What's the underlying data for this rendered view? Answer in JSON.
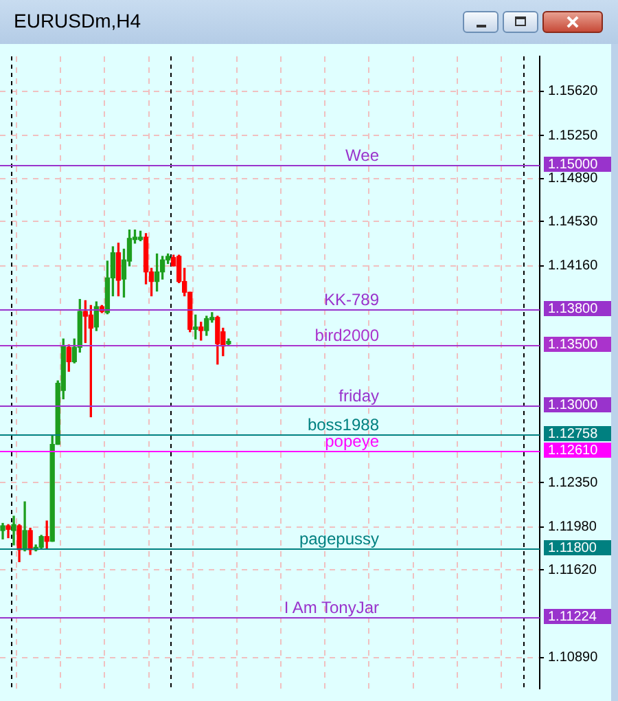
{
  "chart_data": {
    "type": "candlestick",
    "title": "EURUSDm,H4",
    "categories": [
      null,
      null,
      null,
      null,
      null,
      null,
      null,
      null,
      null,
      null,
      null,
      null,
      null,
      null,
      null,
      null,
      null,
      null,
      null,
      null,
      null,
      null,
      null,
      null,
      null,
      null,
      null,
      null,
      null,
      null,
      null,
      null,
      null,
      null,
      null,
      null,
      null,
      null,
      null,
      null,
      null,
      null,
      null,
      null,
      null,
      null,
      null,
      null,
      null,
      null,
      null,
      null,
      null,
      null,
      null,
      null,
      null,
      null,
      null,
      null,
      null,
      null,
      null,
      null,
      null,
      null,
      null,
      null,
      null,
      null,
      null,
      null,
      null,
      null,
      null,
      null,
      null,
      null,
      null,
      null,
      null,
      null,
      null,
      null,
      null,
      null,
      null,
      null,
      null,
      null,
      null,
      null,
      null,
      null,
      null,
      null,
      null,
      null
    ],
    "ohlc": [
      [
        1.1195,
        1.1201,
        1.1188,
        1.1199
      ],
      [
        1.1199,
        1.12,
        1.1189,
        1.1196
      ],
      [
        1.1195,
        1.1207,
        1.1183,
        1.12
      ],
      [
        1.1199,
        1.12,
        1.1169,
        1.1179
      ],
      [
        1.1179,
        1.1219,
        1.1178,
        1.1195
      ],
      [
        1.1195,
        1.1197,
        1.1175,
        1.1179
      ],
      [
        1.1179,
        1.1183,
        1.1178,
        1.1181
      ],
      [
        1.1181,
        1.1191,
        1.118,
        1.119
      ],
      [
        1.119,
        1.1203,
        1.118,
        1.1186
      ],
      [
        1.1186,
        1.1274,
        1.1186,
        1.1267
      ],
      [
        1.1267,
        1.132,
        1.1267,
        1.1318
      ],
      [
        1.1312,
        1.1355,
        1.1305,
        1.1349
      ],
      [
        1.1348,
        1.135,
        1.1328,
        1.1336
      ],
      [
        1.1336,
        1.1355,
        1.1335,
        1.1348
      ],
      [
        1.1348,
        1.1388,
        1.1344,
        1.1378
      ],
      [
        1.1378,
        1.1387,
        1.1352,
        1.1374
      ],
      [
        1.1375,
        1.1383,
        1.129,
        1.1364
      ],
      [
        1.1365,
        1.1386,
        1.1362,
        1.1382
      ],
      [
        1.1382,
        1.1383,
        1.1377,
        1.1378
      ],
      [
        1.1377,
        1.142,
        1.1376,
        1.1406
      ],
      [
        1.1406,
        1.1432,
        1.1391,
        1.1427
      ],
      [
        1.1427,
        1.1435,
        1.1391,
        1.1404
      ],
      [
        1.1405,
        1.143,
        1.139,
        1.1421
      ],
      [
        1.142,
        1.1446,
        1.1416,
        1.1439
      ],
      [
        1.1438,
        1.1446,
        1.1435,
        1.144
      ],
      [
        1.1438,
        1.1445,
        1.1437,
        1.144
      ],
      [
        1.144,
        1.1443,
        1.1401,
        1.1411
      ],
      [
        1.1411,
        1.1414,
        1.1391,
        1.1403
      ],
      [
        1.1403,
        1.1426,
        1.1395,
        1.1411
      ],
      [
        1.1411,
        1.1424,
        1.1405,
        1.1421
      ],
      [
        1.1421,
        1.1426,
        1.1418,
        1.1424
      ],
      [
        1.1423,
        1.1425,
        1.1416,
        1.1416
      ],
      [
        1.1424,
        1.1425,
        1.1402,
        1.1403
      ],
      [
        1.1403,
        1.1414,
        1.1391,
        1.1394
      ],
      [
        1.1394,
        1.1394,
        1.1361,
        1.1363
      ],
      [
        1.1363,
        1.1375,
        1.1355,
        1.1365
      ],
      [
        1.1365,
        1.1369,
        1.1354,
        1.1362
      ],
      [
        1.1362,
        1.1374,
        1.1358,
        1.1372
      ],
      [
        1.1371,
        1.1377,
        1.1369,
        1.1373
      ],
      [
        1.1373,
        1.1374,
        1.1334,
        1.1351
      ],
      [
        1.1361,
        1.1364,
        1.1341,
        1.1349
      ],
      [
        1.1351,
        1.1355,
        1.135,
        1.1353
      ],
      null,
      null,
      null,
      null,
      null,
      null,
      null,
      null,
      null,
      null,
      null,
      null,
      null,
      null,
      null,
      null,
      null,
      null,
      null,
      null,
      null,
      null,
      null,
      null,
      null,
      null,
      null,
      null,
      null,
      null,
      null,
      null,
      null,
      null,
      null,
      null,
      null,
      null,
      null,
      null,
      null,
      null,
      null,
      null,
      null,
      null,
      null,
      null,
      null,
      null,
      null,
      null,
      null,
      null,
      null,
      null
    ],
    "colors": [
      "#1e9e1e",
      "#ff0000",
      "#1e9e1e",
      "#ff0000",
      "#1e9e1e",
      "#ff0000",
      "#1e9e1e",
      "#1e9e1e",
      "#ff0000",
      "#1e9e1e",
      "#1e9e1e",
      "#1e9e1e",
      "#ff0000",
      "#1e9e1e",
      "#1e9e1e",
      "#ff0000",
      "#ff0000",
      "#1e9e1e",
      "#ff0000",
      "#1e9e1e",
      "#1e9e1e",
      "#ff0000",
      "#1e9e1e",
      "#1e9e1e",
      "#1e9e1e",
      "#1e9e1e",
      "#ff0000",
      "#ff0000",
      "#1e9e1e",
      "#1e9e1e",
      "#1e9e1e",
      "#ff0000",
      "#ff0000",
      "#ff0000",
      "#ff0000",
      "#1e9e1e",
      "#ff0000",
      "#1e9e1e",
      "#1e9e1e",
      "#ff0000",
      "#ff0000",
      "#1e9e1e",
      null,
      null,
      null,
      null,
      null,
      null,
      null,
      null,
      null,
      null,
      null,
      null,
      null,
      null,
      null,
      null,
      null,
      null,
      null,
      null,
      null,
      null,
      null,
      null,
      null,
      null,
      null,
      null,
      null,
      null,
      null,
      null,
      null,
      null,
      null,
      null,
      null,
      null,
      null,
      null,
      null,
      null,
      null,
      null,
      null,
      null,
      null,
      null,
      null,
      null,
      null,
      null,
      null,
      null,
      null,
      null
    ],
    "ylim": [
      1.1063,
      1.1591
    ],
    "yticks": [
      {
        "value": 1.1562,
        "label": "1.15620"
      },
      {
        "value": 1.1525,
        "label": "1.15250"
      },
      {
        "value": 1.1489,
        "label": "1.14890"
      },
      {
        "value": 1.1453,
        "label": "1.14530"
      },
      {
        "value": 1.1416,
        "label": "1.14160"
      },
      {
        "value": 1.1235,
        "label": "1.12350"
      },
      {
        "value": 1.1198,
        "label": "1.11980"
      },
      {
        "value": 1.1162,
        "label": "1.11620"
      },
      {
        "value": 1.1089,
        "label": "1.10890"
      }
    ],
    "annotations": [
      "1.15000",
      "1.13800",
      "1.13500",
      "1.13000",
      "1.12758",
      "1.12610",
      "1.11800",
      "1.11224"
    ],
    "grid": true,
    "legend": false,
    "tick_labels": "y",
    "ref_lines": [
      {
        "axis": "y",
        "value": 1.15,
        "label": "Wee",
        "color": "#9933cc"
      },
      {
        "axis": "y",
        "value": 1.138,
        "label": "KK-789",
        "color": "#9933cc"
      },
      {
        "axis": "y",
        "value": 1.135,
        "label": "bird2000",
        "color": "#aa33cc"
      },
      {
        "axis": "y",
        "value": 1.13,
        "label": "friday",
        "color": "#9933cc"
      },
      {
        "axis": "y",
        "value": 1.12758,
        "label": "boss1988",
        "color": "#008080"
      },
      {
        "axis": "y",
        "value": 1.1261,
        "label": "popeye",
        "color": "#ff00ff"
      },
      {
        "axis": "y",
        "value": 1.118,
        "label": "pagepussy",
        "color": "#008080"
      },
      {
        "axis": "y",
        "value": 1.11224,
        "label": "I Am TonyJar",
        "color": "#9933cc"
      }
    ]
  }
}
